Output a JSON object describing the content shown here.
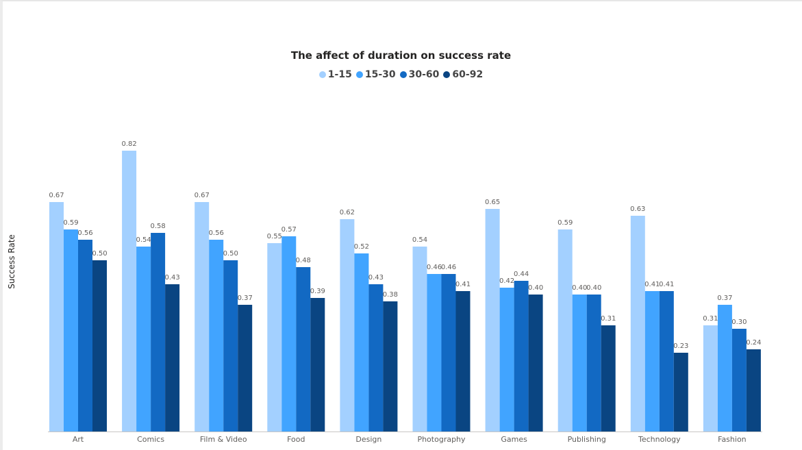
{
  "chart_data": {
    "type": "bar",
    "title": "The affect of duration on success rate",
    "xlabel": "",
    "ylabel": "Success Rate",
    "ylim": [
      0,
      1
    ],
    "grid": false,
    "legend_position": "top-center",
    "categories": [
      "Art",
      "Comics",
      "Film & Video",
      "Food",
      "Design",
      "Photography",
      "Games",
      "Publishing",
      "Technology",
      "Fashion"
    ],
    "series": [
      {
        "name": "1-15",
        "color": "#a3d0ff",
        "values": [
          0.67,
          0.82,
          0.67,
          0.55,
          0.62,
          0.54,
          0.65,
          0.59,
          0.63,
          0.31
        ],
        "labels": [
          "0.67",
          "0.82",
          "0.67",
          "0.55",
          "0.62",
          "0.54",
          "0.65",
          "0.59",
          "0.63",
          "0.31"
        ]
      },
      {
        "name": "15-30",
        "color": "#41a4ff",
        "values": [
          0.59,
          0.54,
          0.56,
          0.57,
          0.52,
          0.46,
          0.42,
          0.4,
          0.41,
          0.37
        ],
        "labels": [
          "0.59",
          "0.54",
          "0.56",
          "0.57",
          "0.52",
          "0.46",
          "0.42",
          "0.40",
          "0.41",
          "0.37"
        ]
      },
      {
        "name": "30-60",
        "color": "#1269c3",
        "values": [
          0.56,
          0.58,
          0.5,
          0.48,
          0.43,
          0.46,
          0.44,
          0.4,
          0.41,
          0.3
        ],
        "labels": [
          "0.56",
          "0.58",
          "0.50",
          "0.48",
          "0.43",
          "0.46",
          "0.44",
          "0.40",
          "0.41",
          "0.30"
        ]
      },
      {
        "name": "60-92",
        "color": "#0a4582",
        "values": [
          0.5,
          0.43,
          0.37,
          0.39,
          0.38,
          0.41,
          0.4,
          0.31,
          0.23,
          0.24
        ],
        "labels": [
          "0.50",
          "0.43",
          "0.37",
          "0.39",
          "0.38",
          "0.41",
          "0.40",
          "0.31",
          "0.23",
          "0.24"
        ]
      }
    ]
  }
}
